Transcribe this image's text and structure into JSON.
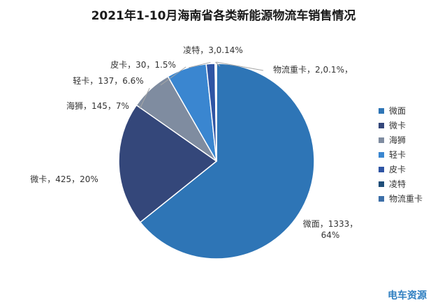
{
  "chart_data": {
    "type": "pie",
    "title": "2021年1-10月海南省各类新能源物流车销售情况",
    "categories": [
      "微面",
      "微卡",
      "海狮",
      "轻卡",
      "皮卡",
      "凌特",
      "物流重卡"
    ],
    "values": [
      1333,
      425,
      145,
      137,
      30,
      3,
      2
    ],
    "percent_labels": [
      "64%",
      "20%",
      "7%",
      "6.6%",
      "1.5%",
      "0.14%",
      "0.1%"
    ],
    "data_labels": [
      [
        "微面，1333，",
        "64%"
      ],
      [
        "微卡，425，20%"
      ],
      [
        "海狮，145，7%"
      ],
      [
        "轻卡，137，6.6%"
      ],
      [
        "皮卡，30，1.5%"
      ],
      [
        "凌特，3,0.14%"
      ],
      [
        "物流重卡，2,0.1%，"
      ]
    ],
    "colors": [
      "#2e75b6",
      "#34477a",
      "#7f8ca0",
      "#3a86d0",
      "#2f55a4",
      "#1f4e79",
      "#3d6fa8"
    ],
    "legend_position": "right"
  },
  "watermark": "电车资源"
}
